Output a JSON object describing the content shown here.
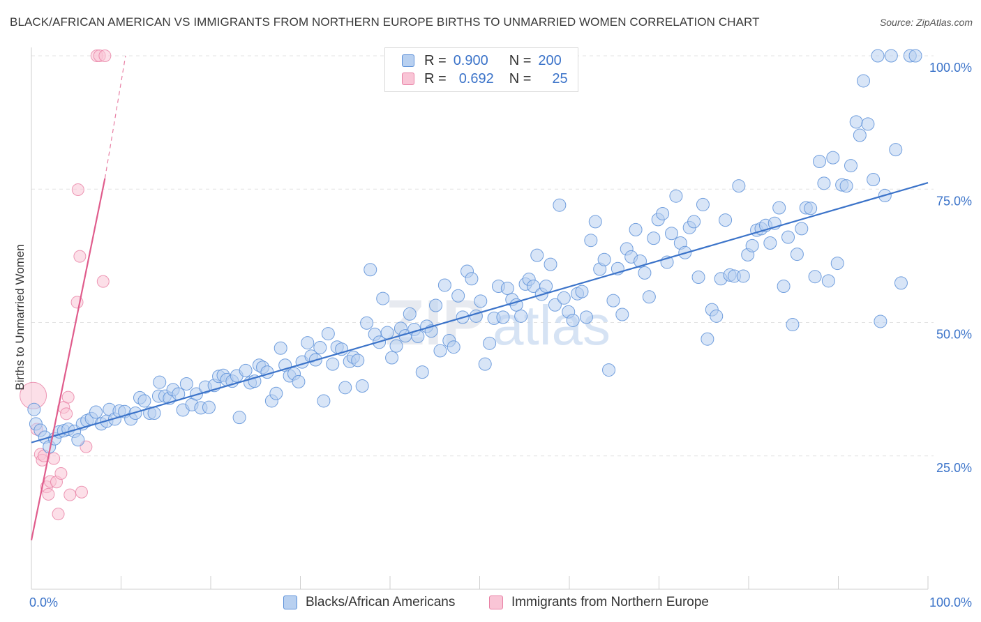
{
  "header": {
    "title": "BLACK/AFRICAN AMERICAN VS IMMIGRANTS FROM NORTHERN EUROPE BIRTHS TO UNMARRIED WOMEN CORRELATION CHART",
    "source": "Source: ZipAtlas.com"
  },
  "legend": {
    "r_label": "R =",
    "n_label": "N =",
    "rows": [
      {
        "r": "0.900",
        "n": "200"
      },
      {
        "r": "0.692",
        "n": "25"
      }
    ]
  },
  "watermark": {
    "zip": "ZIP",
    "atlas": "atlas"
  },
  "colors": {
    "blue": "#5a8fd8",
    "blue_fill": "#b8d0f0",
    "blue_line": "#3b73c9",
    "pink": "#e87fa4",
    "pink_fill": "#f9c5d6",
    "pink_line": "#e05c8c"
  },
  "chart_data": {
    "type": "scatter",
    "title": "BLACK/AFRICAN AMERICAN VS IMMIGRANTS FROM NORTHERN EUROPE BIRTHS TO UNMARRIED WOMEN CORRELATION CHART",
    "xlabel": "",
    "ylabel": "Births to Unmarried Women",
    "xlim": [
      0,
      100
    ],
    "ylim": [
      0,
      100
    ],
    "x_tick_labels": [
      "0.0%",
      "100.0%"
    ],
    "y_tick_labels": [
      "25.0%",
      "50.0%",
      "75.0%",
      "100.0%"
    ],
    "y_ticks": [
      25,
      50,
      75,
      100
    ],
    "grid": true,
    "legend_position": "top-center",
    "series": [
      {
        "name": "Blacks/African Americans",
        "r": 0.9,
        "n": 200,
        "trend": [
          [
            0,
            27.5
          ],
          [
            100,
            76.2
          ]
        ],
        "points": [
          [
            0.3,
            33.7
          ],
          [
            0.5,
            31.0
          ],
          [
            1.0,
            29.8
          ],
          [
            1.5,
            28.5
          ],
          [
            2.0,
            26.7
          ],
          [
            2.6,
            28.2
          ],
          [
            3.1,
            29.5
          ],
          [
            3.6,
            29.7
          ],
          [
            4.1,
            30.0
          ],
          [
            4.8,
            29.6
          ],
          [
            5.2,
            28.0
          ],
          [
            5.7,
            31.0
          ],
          [
            6.2,
            31.6
          ],
          [
            6.7,
            32.0
          ],
          [
            7.2,
            33.2
          ],
          [
            7.8,
            31.0
          ],
          [
            8.4,
            31.5
          ],
          [
            8.7,
            33.7
          ],
          [
            9.3,
            31.9
          ],
          [
            9.8,
            33.4
          ],
          [
            10.4,
            33.3
          ],
          [
            11.1,
            31.9
          ],
          [
            11.6,
            33.0
          ],
          [
            12.1,
            35.9
          ],
          [
            12.6,
            35.3
          ],
          [
            13.2,
            33.0
          ],
          [
            13.7,
            33.0
          ],
          [
            14.2,
            36.2
          ],
          [
            14.3,
            38.8
          ],
          [
            14.9,
            36.2
          ],
          [
            15.4,
            35.8
          ],
          [
            15.8,
            37.4
          ],
          [
            16.4,
            36.6
          ],
          [
            16.9,
            33.6
          ],
          [
            17.3,
            38.5
          ],
          [
            17.9,
            34.6
          ],
          [
            18.4,
            36.6
          ],
          [
            18.9,
            34.0
          ],
          [
            19.4,
            37.9
          ],
          [
            19.8,
            34.1
          ],
          [
            20.4,
            38.2
          ],
          [
            20.9,
            39.9
          ],
          [
            21.4,
            40.1
          ],
          [
            21.8,
            39.3
          ],
          [
            22.4,
            39.0
          ],
          [
            22.9,
            40.0
          ],
          [
            23.2,
            32.2
          ],
          [
            23.9,
            41.0
          ],
          [
            24.4,
            38.7
          ],
          [
            24.9,
            39.0
          ],
          [
            25.4,
            42.0
          ],
          [
            25.8,
            41.6
          ],
          [
            26.3,
            40.7
          ],
          [
            26.8,
            35.3
          ],
          [
            27.3,
            36.7
          ],
          [
            27.8,
            45.2
          ],
          [
            28.3,
            42.0
          ],
          [
            28.8,
            40.0
          ],
          [
            29.3,
            40.4
          ],
          [
            29.8,
            38.9
          ],
          [
            30.2,
            42.6
          ],
          [
            30.8,
            46.2
          ],
          [
            31.2,
            43.7
          ],
          [
            31.7,
            43.0
          ],
          [
            32.2,
            45.3
          ],
          [
            32.6,
            35.3
          ],
          [
            33.1,
            47.9
          ],
          [
            33.6,
            42.2
          ],
          [
            34.1,
            45.4
          ],
          [
            34.6,
            45.0
          ],
          [
            35.0,
            37.8
          ],
          [
            35.5,
            42.7
          ],
          [
            35.9,
            43.5
          ],
          [
            36.4,
            42.9
          ],
          [
            36.9,
            38.1
          ],
          [
            37.4,
            49.9
          ],
          [
            37.8,
            59.9
          ],
          [
            38.3,
            47.8
          ],
          [
            38.8,
            46.3
          ],
          [
            39.2,
            54.5
          ],
          [
            39.7,
            48.1
          ],
          [
            40.2,
            43.4
          ],
          [
            40.7,
            45.6
          ],
          [
            41.2,
            48.9
          ],
          [
            41.7,
            47.5
          ],
          [
            42.2,
            51.6
          ],
          [
            42.7,
            48.7
          ],
          [
            43.1,
            47.4
          ],
          [
            43.6,
            40.7
          ],
          [
            44.1,
            49.3
          ],
          [
            44.6,
            48.4
          ],
          [
            45.1,
            53.2
          ],
          [
            45.6,
            44.7
          ],
          [
            46.1,
            57.0
          ],
          [
            46.6,
            46.6
          ],
          [
            47.1,
            45.4
          ],
          [
            47.6,
            55.0
          ],
          [
            48.1,
            51.0
          ],
          [
            48.6,
            59.6
          ],
          [
            49.1,
            58.2
          ],
          [
            49.6,
            51.2
          ],
          [
            50.1,
            54.0
          ],
          [
            50.6,
            42.2
          ],
          [
            51.1,
            46.1
          ],
          [
            51.6,
            50.8
          ],
          [
            52.1,
            56.8
          ],
          [
            52.6,
            51.0
          ],
          [
            53.1,
            56.4
          ],
          [
            53.6,
            54.3
          ],
          [
            54.1,
            53.3
          ],
          [
            54.6,
            51.2
          ],
          [
            55.1,
            57.2
          ],
          [
            55.5,
            58.1
          ],
          [
            56.0,
            56.8
          ],
          [
            56.4,
            62.6
          ],
          [
            56.9,
            55.3
          ],
          [
            57.4,
            56.8
          ],
          [
            57.9,
            60.9
          ],
          [
            58.4,
            53.3
          ],
          [
            58.9,
            72.0
          ],
          [
            59.4,
            54.6
          ],
          [
            59.9,
            52.0
          ],
          [
            60.4,
            50.4
          ],
          [
            60.9,
            55.4
          ],
          [
            61.4,
            55.8
          ],
          [
            61.9,
            51.0
          ],
          [
            62.4,
            65.4
          ],
          [
            62.9,
            68.9
          ],
          [
            63.4,
            60.0
          ],
          [
            63.9,
            61.8
          ],
          [
            64.4,
            41.1
          ],
          [
            64.9,
            54.1
          ],
          [
            65.4,
            60.1
          ],
          [
            65.9,
            51.5
          ],
          [
            66.4,
            63.8
          ],
          [
            66.9,
            62.3
          ],
          [
            67.4,
            67.4
          ],
          [
            67.9,
            61.5
          ],
          [
            68.4,
            59.3
          ],
          [
            68.9,
            54.8
          ],
          [
            69.4,
            65.8
          ],
          [
            69.9,
            69.3
          ],
          [
            70.4,
            70.4
          ],
          [
            70.9,
            61.3
          ],
          [
            71.4,
            66.7
          ],
          [
            71.9,
            73.7
          ],
          [
            72.4,
            64.9
          ],
          [
            72.9,
            63.1
          ],
          [
            73.4,
            67.8
          ],
          [
            73.9,
            68.9
          ],
          [
            74.4,
            58.5
          ],
          [
            74.9,
            72.1
          ],
          [
            75.4,
            46.9
          ],
          [
            75.9,
            52.4
          ],
          [
            76.4,
            51.2
          ],
          [
            76.9,
            58.2
          ],
          [
            77.4,
            69.2
          ],
          [
            77.9,
            58.9
          ],
          [
            78.4,
            58.7
          ],
          [
            78.9,
            75.6
          ],
          [
            79.4,
            58.7
          ],
          [
            79.9,
            62.7
          ],
          [
            80.4,
            64.4
          ],
          [
            80.9,
            67.3
          ],
          [
            81.4,
            67.6
          ],
          [
            81.9,
            68.2
          ],
          [
            82.4,
            64.9
          ],
          [
            82.9,
            68.6
          ],
          [
            83.4,
            71.5
          ],
          [
            83.9,
            56.8
          ],
          [
            84.4,
            66.0
          ],
          [
            84.9,
            49.6
          ],
          [
            85.4,
            62.8
          ],
          [
            85.9,
            67.6
          ],
          [
            86.4,
            71.5
          ],
          [
            86.9,
            71.4
          ],
          [
            87.4,
            58.6
          ],
          [
            87.9,
            80.2
          ],
          [
            88.4,
            76.1
          ],
          [
            88.9,
            57.8
          ],
          [
            89.4,
            80.9
          ],
          [
            89.9,
            61.1
          ],
          [
            90.4,
            75.8
          ],
          [
            90.9,
            75.6
          ],
          [
            91.4,
            79.4
          ],
          [
            92.0,
            87.6
          ],
          [
            92.4,
            85.1
          ],
          [
            92.8,
            95.3
          ],
          [
            93.3,
            87.2
          ],
          [
            93.9,
            76.8
          ],
          [
            94.4,
            100.0
          ],
          [
            94.7,
            50.2
          ],
          [
            95.2,
            73.8
          ],
          [
            95.9,
            100.0
          ],
          [
            96.4,
            82.4
          ],
          [
            97.0,
            57.4
          ],
          [
            98.0,
            100.0
          ],
          [
            98.6,
            100.0
          ]
        ]
      },
      {
        "name": "Immigrants from Northern Europe",
        "r": 0.692,
        "n": 25,
        "trend": [
          [
            0,
            9.2
          ],
          [
            8.2,
            77.0
          ]
        ],
        "trend_extension": [
          [
            8.2,
            77.0
          ],
          [
            10.5,
            100.0
          ]
        ],
        "points": [
          [
            0.2,
            36.3
          ],
          [
            0.6,
            30.0
          ],
          [
            1.0,
            25.3
          ],
          [
            1.2,
            24.2
          ],
          [
            1.4,
            25.0
          ],
          [
            1.7,
            19.2
          ],
          [
            1.9,
            17.8
          ],
          [
            2.1,
            20.2
          ],
          [
            2.5,
            24.5
          ],
          [
            2.8,
            20.1
          ],
          [
            3.0,
            14.1
          ],
          [
            3.3,
            21.7
          ],
          [
            3.6,
            34.1
          ],
          [
            3.9,
            32.9
          ],
          [
            4.1,
            36.0
          ],
          [
            4.3,
            17.7
          ],
          [
            5.1,
            53.8
          ],
          [
            5.2,
            74.9
          ],
          [
            5.4,
            62.4
          ],
          [
            5.6,
            18.2
          ],
          [
            6.1,
            26.7
          ],
          [
            7.3,
            100.0
          ],
          [
            7.6,
            100.0
          ],
          [
            8.0,
            57.7
          ],
          [
            8.2,
            100.0
          ]
        ]
      }
    ]
  },
  "bottom_legend": {
    "items": [
      {
        "label": "Blacks/African Americans"
      },
      {
        "label": "Immigrants from Northern Europe"
      }
    ]
  }
}
